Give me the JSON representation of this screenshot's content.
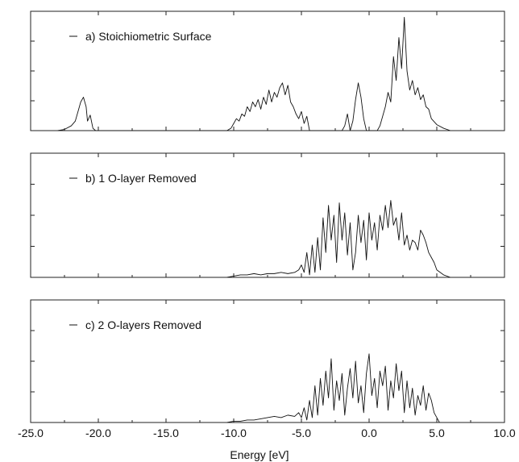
{
  "chart_data": {
    "type": "line",
    "xlabel": "Energy [eV]",
    "xlim": [
      -25.0,
      10.0
    ],
    "x_ticks": [
      "-25.0",
      "-20.0",
      "-15.0",
      "-10.0",
      "-5.0",
      "0.0",
      "5.0",
      "10.0"
    ],
    "x_tick_values": [
      -25,
      -20,
      -15,
      -10,
      -5,
      0,
      5,
      10
    ],
    "y_tick_labels_shown": false,
    "grid": false,
    "line_color": "#111111",
    "panels": [
      {
        "label": "a) Stoichiometric Surface",
        "ylim": [
          0,
          1
        ],
        "series": [
          {
            "name": "a) Stoichiometric Surface",
            "points": [
              [
                -23.0,
                0.0
              ],
              [
                -22.5,
                0.01
              ],
              [
                -22.0,
                0.04
              ],
              [
                -21.7,
                0.08
              ],
              [
                -21.5,
                0.16
              ],
              [
                -21.3,
                0.24
              ],
              [
                -21.1,
                0.28
              ],
              [
                -20.9,
                0.2
              ],
              [
                -20.8,
                0.08
              ],
              [
                -20.6,
                0.13
              ],
              [
                -20.4,
                0.02
              ],
              [
                -20.2,
                0.0
              ],
              [
                -10.5,
                0.0
              ],
              [
                -10.2,
                0.02
              ],
              [
                -10.0,
                0.06
              ],
              [
                -9.8,
                0.1
              ],
              [
                -9.6,
                0.08
              ],
              [
                -9.4,
                0.14
              ],
              [
                -9.2,
                0.12
              ],
              [
                -9.0,
                0.2
              ],
              [
                -8.8,
                0.16
              ],
              [
                -8.6,
                0.24
              ],
              [
                -8.4,
                0.2
              ],
              [
                -8.2,
                0.26
              ],
              [
                -8.0,
                0.18
              ],
              [
                -7.8,
                0.28
              ],
              [
                -7.6,
                0.22
              ],
              [
                -7.4,
                0.34
              ],
              [
                -7.2,
                0.24
              ],
              [
                -7.0,
                0.32
              ],
              [
                -6.8,
                0.28
              ],
              [
                -6.6,
                0.36
              ],
              [
                -6.4,
                0.4
              ],
              [
                -6.2,
                0.3
              ],
              [
                -6.0,
                0.38
              ],
              [
                -5.8,
                0.24
              ],
              [
                -5.6,
                0.2
              ],
              [
                -5.4,
                0.14
              ],
              [
                -5.2,
                0.1
              ],
              [
                -5.0,
                0.16
              ],
              [
                -4.8,
                0.06
              ],
              [
                -4.6,
                0.12
              ],
              [
                -4.4,
                0.0
              ],
              [
                -2.0,
                0.0
              ],
              [
                -1.8,
                0.04
              ],
              [
                -1.6,
                0.14
              ],
              [
                -1.4,
                0.0
              ],
              [
                -1.2,
                0.08
              ],
              [
                -1.0,
                0.26
              ],
              [
                -0.8,
                0.4
              ],
              [
                -0.6,
                0.28
              ],
              [
                -0.4,
                0.1
              ],
              [
                -0.2,
                0.0
              ],
              [
                0.6,
                0.0
              ],
              [
                0.8,
                0.04
              ],
              [
                1.0,
                0.12
              ],
              [
                1.2,
                0.2
              ],
              [
                1.4,
                0.32
              ],
              [
                1.6,
                0.24
              ],
              [
                1.8,
                0.62
              ],
              [
                2.0,
                0.42
              ],
              [
                2.2,
                0.78
              ],
              [
                2.4,
                0.52
              ],
              [
                2.6,
                0.95
              ],
              [
                2.8,
                0.5
              ],
              [
                3.0,
                0.34
              ],
              [
                3.2,
                0.42
              ],
              [
                3.4,
                0.3
              ],
              [
                3.6,
                0.36
              ],
              [
                3.8,
                0.26
              ],
              [
                4.0,
                0.3
              ],
              [
                4.2,
                0.2
              ],
              [
                4.4,
                0.18
              ],
              [
                4.6,
                0.1
              ],
              [
                5.0,
                0.05
              ],
              [
                5.5,
                0.02
              ],
              [
                6.0,
                0.0
              ]
            ]
          }
        ]
      },
      {
        "label": "b) 1 O-layer Removed",
        "ylim": [
          0,
          1
        ],
        "series": [
          {
            "name": "b) 1 O-layer Removed",
            "points": [
              [
                -10.5,
                0.0
              ],
              [
                -10.0,
                0.01
              ],
              [
                -9.5,
                0.02
              ],
              [
                -9.0,
                0.02
              ],
              [
                -8.5,
                0.03
              ],
              [
                -8.0,
                0.02
              ],
              [
                -7.5,
                0.03
              ],
              [
                -7.0,
                0.03
              ],
              [
                -6.5,
                0.04
              ],
              [
                -6.0,
                0.03
              ],
              [
                -5.5,
                0.04
              ],
              [
                -5.2,
                0.06
              ],
              [
                -5.0,
                0.1
              ],
              [
                -4.8,
                0.04
              ],
              [
                -4.6,
                0.2
              ],
              [
                -4.4,
                0.02
              ],
              [
                -4.2,
                0.26
              ],
              [
                -4.0,
                0.04
              ],
              [
                -3.8,
                0.32
              ],
              [
                -3.6,
                0.06
              ],
              [
                -3.4,
                0.48
              ],
              [
                -3.2,
                0.2
              ],
              [
                -3.0,
                0.58
              ],
              [
                -2.8,
                0.3
              ],
              [
                -2.6,
                0.5
              ],
              [
                -2.4,
                0.12
              ],
              [
                -2.2,
                0.6
              ],
              [
                -2.0,
                0.3
              ],
              [
                -1.8,
                0.52
              ],
              [
                -1.6,
                0.18
              ],
              [
                -1.4,
                0.44
              ],
              [
                -1.2,
                0.06
              ],
              [
                -1.0,
                0.2
              ],
              [
                -0.8,
                0.5
              ],
              [
                -0.6,
                0.28
              ],
              [
                -0.4,
                0.46
              ],
              [
                -0.2,
                0.14
              ],
              [
                0.0,
                0.52
              ],
              [
                0.2,
                0.3
              ],
              [
                0.4,
                0.44
              ],
              [
                0.6,
                0.22
              ],
              [
                0.8,
                0.5
              ],
              [
                1.0,
                0.38
              ],
              [
                1.2,
                0.58
              ],
              [
                1.4,
                0.4
              ],
              [
                1.6,
                0.62
              ],
              [
                1.8,
                0.42
              ],
              [
                2.0,
                0.48
              ],
              [
                2.2,
                0.3
              ],
              [
                2.4,
                0.52
              ],
              [
                2.6,
                0.26
              ],
              [
                2.8,
                0.34
              ],
              [
                3.0,
                0.22
              ],
              [
                3.2,
                0.3
              ],
              [
                3.4,
                0.28
              ],
              [
                3.6,
                0.22
              ],
              [
                3.8,
                0.38
              ],
              [
                4.0,
                0.34
              ],
              [
                4.2,
                0.28
              ],
              [
                4.4,
                0.2
              ],
              [
                4.6,
                0.16
              ],
              [
                4.8,
                0.12
              ],
              [
                5.0,
                0.06
              ],
              [
                5.5,
                0.02
              ],
              [
                6.0,
                0.0
              ]
            ]
          }
        ]
      },
      {
        "label": "c) 2 O-layers Removed",
        "ylim": [
          0,
          1
        ],
        "series": [
          {
            "name": "c) 2 O-layers Removed",
            "points": [
              [
                -10.5,
                0.0
              ],
              [
                -10.0,
                0.01
              ],
              [
                -9.5,
                0.01
              ],
              [
                -9.0,
                0.02
              ],
              [
                -8.5,
                0.02
              ],
              [
                -8.0,
                0.03
              ],
              [
                -7.5,
                0.04
              ],
              [
                -7.0,
                0.05
              ],
              [
                -6.5,
                0.04
              ],
              [
                -6.0,
                0.06
              ],
              [
                -5.5,
                0.05
              ],
              [
                -5.2,
                0.08
              ],
              [
                -5.0,
                0.04
              ],
              [
                -4.8,
                0.12
              ],
              [
                -4.6,
                0.02
              ],
              [
                -4.4,
                0.18
              ],
              [
                -4.2,
                0.04
              ],
              [
                -4.0,
                0.3
              ],
              [
                -3.8,
                0.06
              ],
              [
                -3.6,
                0.36
              ],
              [
                -3.4,
                0.14
              ],
              [
                -3.2,
                0.42
              ],
              [
                -3.0,
                0.2
              ],
              [
                -2.8,
                0.52
              ],
              [
                -2.6,
                0.1
              ],
              [
                -2.4,
                0.34
              ],
              [
                -2.2,
                0.18
              ],
              [
                -2.0,
                0.4
              ],
              [
                -1.8,
                0.06
              ],
              [
                -1.6,
                0.28
              ],
              [
                -1.4,
                0.44
              ],
              [
                -1.2,
                0.2
              ],
              [
                -1.0,
                0.5
              ],
              [
                -0.8,
                0.16
              ],
              [
                -0.6,
                0.3
              ],
              [
                -0.4,
                0.08
              ],
              [
                -0.2,
                0.4
              ],
              [
                0.0,
                0.56
              ],
              [
                0.2,
                0.22
              ],
              [
                0.4,
                0.36
              ],
              [
                0.6,
                0.12
              ],
              [
                0.8,
                0.42
              ],
              [
                1.0,
                0.3
              ],
              [
                1.2,
                0.46
              ],
              [
                1.4,
                0.1
              ],
              [
                1.6,
                0.34
              ],
              [
                1.8,
                0.2
              ],
              [
                2.0,
                0.48
              ],
              [
                2.2,
                0.26
              ],
              [
                2.4,
                0.42
              ],
              [
                2.6,
                0.08
              ],
              [
                2.8,
                0.34
              ],
              [
                3.0,
                0.12
              ],
              [
                3.2,
                0.28
              ],
              [
                3.4,
                0.06
              ],
              [
                3.6,
                0.22
              ],
              [
                3.8,
                0.14
              ],
              [
                4.0,
                0.3
              ],
              [
                4.2,
                0.1
              ],
              [
                4.4,
                0.24
              ],
              [
                4.6,
                0.18
              ],
              [
                4.8,
                0.08
              ],
              [
                5.0,
                0.04
              ],
              [
                5.2,
                0.0
              ]
            ]
          }
        ]
      }
    ]
  }
}
